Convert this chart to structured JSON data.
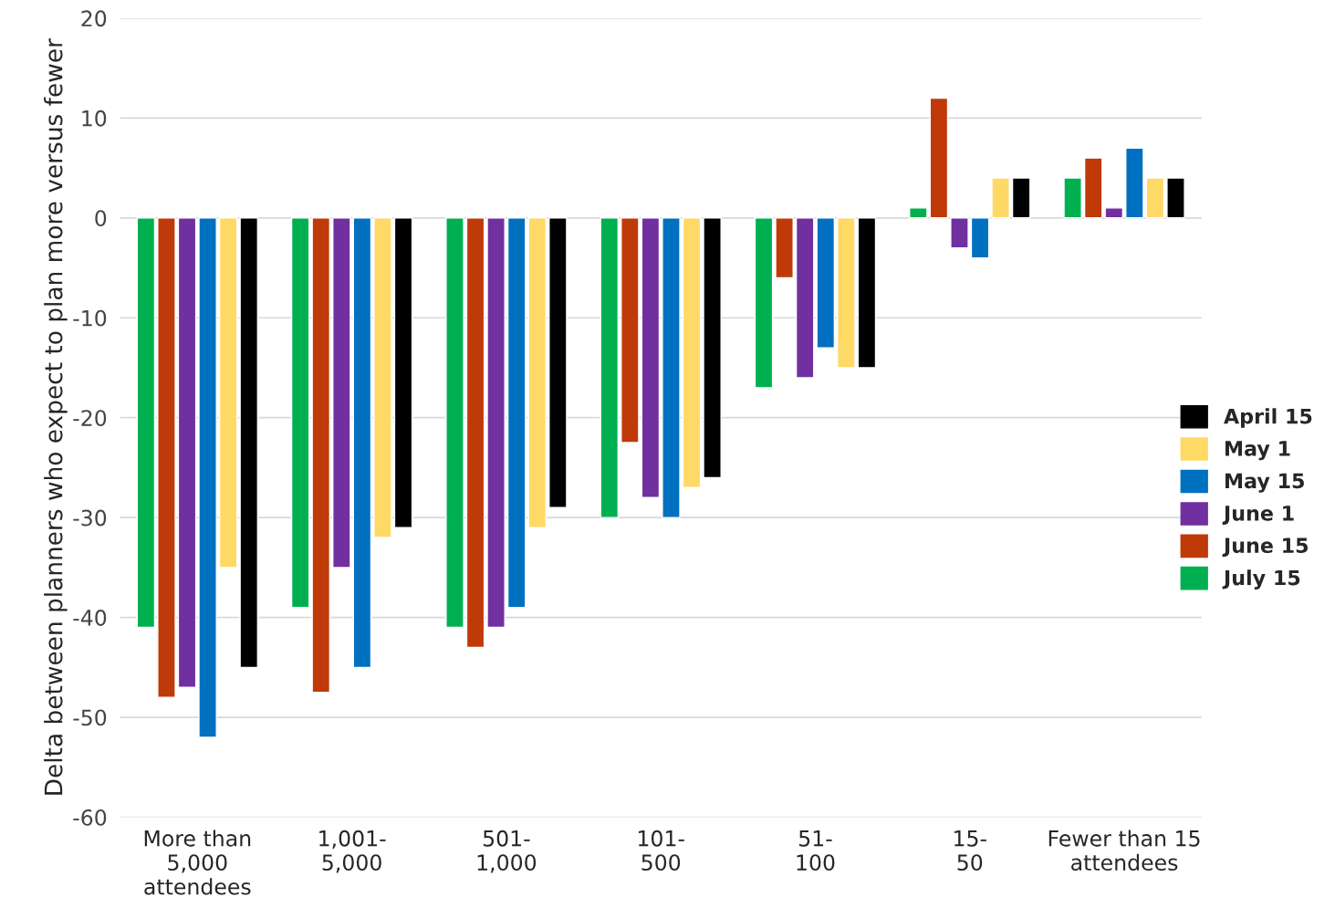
{
  "chart_data": {
    "type": "bar",
    "ylabel": "Delta between planners who expect to plan more versus fewer",
    "categories": [
      "More than\n5,000\nattendees",
      "1,001-\n5,000",
      "501-\n1,000",
      "101-\n500",
      "51-\n100",
      "15-\n50",
      "Fewer than 15\nattendees"
    ],
    "series": [
      {
        "name": "July 15",
        "color": "#00b050",
        "values": [
          -41,
          -39,
          -41,
          -30,
          -17,
          1,
          4
        ]
      },
      {
        "name": "June 15",
        "color": "#bf3a08",
        "values": [
          -48,
          -47.5,
          -43,
          -22.5,
          -6,
          12,
          6
        ]
      },
      {
        "name": "June 1",
        "color": "#7030a0",
        "values": [
          -47,
          -35,
          -41,
          -28,
          -16,
          -3,
          1
        ]
      },
      {
        "name": "May 15",
        "color": "#0070c0",
        "values": [
          -52,
          -45,
          -39,
          -30,
          -13,
          -4,
          7
        ]
      },
      {
        "name": "May 1",
        "color": "#ffd966",
        "values": [
          -35,
          -32,
          -31,
          -27,
          -15,
          4,
          4
        ]
      },
      {
        "name": "April 15",
        "color": "#000000",
        "values": [
          -45,
          -31,
          -29,
          -26,
          -15,
          4,
          4
        ]
      }
    ],
    "ylim": [
      -60,
      20
    ],
    "yticks": [
      -60,
      -50,
      -40,
      -30,
      -20,
      -10,
      0,
      10,
      20
    ],
    "grid": "y",
    "legend": "right"
  }
}
